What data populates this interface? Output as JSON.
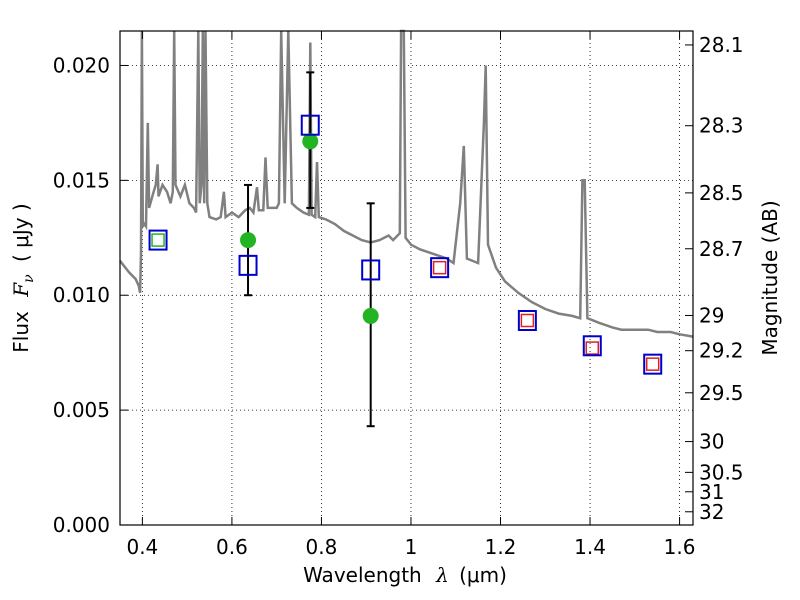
{
  "chart_data": {
    "type": "scatter",
    "xlabel": "Wavelength",
    "xlabel_symbol": "λ",
    "xlabel_unit": "(μm)",
    "ylabel": "Flux",
    "ylabel_symbol": "F",
    "ylabel_sub": "ν",
    "ylabel_unit": "( μJy )",
    "ylabel_right": "Magnitude (AB)",
    "xlim": [
      0.35,
      1.63
    ],
    "ylim": [
      0.0,
      0.0215
    ],
    "grid": true,
    "grid_style": "dotted",
    "x_ticks": [
      {
        "value": 0.4,
        "label": "0.4"
      },
      {
        "value": 0.6,
        "label": "0.6"
      },
      {
        "value": 0.8,
        "label": "0.8"
      },
      {
        "value": 1.0,
        "label": "1"
      },
      {
        "value": 1.2,
        "label": "1.2"
      },
      {
        "value": 1.4,
        "label": "1.4"
      },
      {
        "value": 1.6,
        "label": "1.6"
      }
    ],
    "y_ticks": [
      {
        "value": 0.0,
        "label": "0.000"
      },
      {
        "value": 0.005,
        "label": "0.005"
      },
      {
        "value": 0.01,
        "label": "0.010"
      },
      {
        "value": 0.015,
        "label": "0.015"
      },
      {
        "value": 0.02,
        "label": "0.020"
      }
    ],
    "mag_ticks": [
      {
        "mag": 28.1,
        "label": "28.1"
      },
      {
        "mag": 28.3,
        "label": "28.3"
      },
      {
        "mag": 28.5,
        "label": "28.5"
      },
      {
        "mag": 28.7,
        "label": "28.7"
      },
      {
        "mag": 29.0,
        "label": "29"
      },
      {
        "mag": 29.2,
        "label": "29.2"
      },
      {
        "mag": 29.5,
        "label": "29.5"
      },
      {
        "mag": 30.0,
        "label": "30"
      },
      {
        "mag": 30.5,
        "label": "30.5"
      },
      {
        "mag": 31.0,
        "label": "31"
      },
      {
        "mag": 32.0,
        "label": "32"
      }
    ],
    "colors": {
      "model": "#808080",
      "observed": "#22b422",
      "model_photometry": "#0000cc",
      "secondary": "#dd2222",
      "errorbar": "#000000"
    },
    "observed_points": [
      {
        "x": 0.435,
        "y": 0.0124,
        "err_low": 0.0124,
        "err_high": 0.0124,
        "style": "square-green"
      },
      {
        "x": 0.636,
        "y": 0.0124,
        "err_low": 0.01,
        "err_high": 0.0148,
        "style": "circle-green"
      },
      {
        "x": 0.775,
        "y": 0.0167,
        "err_low": 0.0138,
        "err_high": 0.0197,
        "style": "circle-green"
      },
      {
        "x": 0.91,
        "y": 0.0091,
        "err_low": 0.0043,
        "err_high": 0.014,
        "style": "circle-green"
      },
      {
        "x": 1.064,
        "y": 0.0112,
        "style": "square-red"
      },
      {
        "x": 1.26,
        "y": 0.0089,
        "style": "square-red"
      },
      {
        "x": 1.405,
        "y": 0.0077,
        "style": "square-red"
      },
      {
        "x": 1.54,
        "y": 0.007,
        "style": "square-red"
      }
    ],
    "model_photometry": [
      {
        "x": 0.435,
        "y": 0.0124
      },
      {
        "x": 0.636,
        "y": 0.0113
      },
      {
        "x": 0.775,
        "y": 0.0174
      },
      {
        "x": 0.91,
        "y": 0.0111
      },
      {
        "x": 1.064,
        "y": 0.0112
      },
      {
        "x": 1.26,
        "y": 0.0089
      },
      {
        "x": 1.405,
        "y": 0.0078
      },
      {
        "x": 1.54,
        "y": 0.007
      }
    ],
    "model_spectrum": [
      [
        0.35,
        0.0115
      ],
      [
        0.37,
        0.011
      ],
      [
        0.385,
        0.0107
      ],
      [
        0.392,
        0.0104
      ],
      [
        0.395,
        0.0101
      ],
      [
        0.397,
        0.0118
      ],
      [
        0.399,
        0.0215
      ],
      [
        0.401,
        0.013
      ],
      [
        0.405,
        0.0131
      ],
      [
        0.408,
        0.013
      ],
      [
        0.412,
        0.0175
      ],
      [
        0.415,
        0.0138
      ],
      [
        0.425,
        0.0145
      ],
      [
        0.43,
        0.0148
      ],
      [
        0.434,
        0.0157
      ],
      [
        0.436,
        0.0143
      ],
      [
        0.445,
        0.0148
      ],
      [
        0.455,
        0.0145
      ],
      [
        0.463,
        0.014
      ],
      [
        0.468,
        0.0145
      ],
      [
        0.471,
        0.0215
      ],
      [
        0.474,
        0.0148
      ],
      [
        0.485,
        0.0143
      ],
      [
        0.495,
        0.0148
      ],
      [
        0.505,
        0.014
      ],
      [
        0.515,
        0.0138
      ],
      [
        0.52,
        0.0136
      ],
      [
        0.525,
        0.0215
      ],
      [
        0.528,
        0.014
      ],
      [
        0.532,
        0.0148
      ],
      [
        0.535,
        0.0215
      ],
      [
        0.538,
        0.014
      ],
      [
        0.541,
        0.0215
      ],
      [
        0.545,
        0.014
      ],
      [
        0.55,
        0.0134
      ],
      [
        0.565,
        0.0133
      ],
      [
        0.575,
        0.0134
      ],
      [
        0.582,
        0.0145
      ],
      [
        0.586,
        0.0134
      ],
      [
        0.6,
        0.0136
      ],
      [
        0.615,
        0.0134
      ],
      [
        0.63,
        0.0137
      ],
      [
        0.64,
        0.0138
      ],
      [
        0.648,
        0.0136
      ],
      [
        0.656,
        0.0147
      ],
      [
        0.66,
        0.0137
      ],
      [
        0.67,
        0.0137
      ],
      [
        0.675,
        0.016
      ],
      [
        0.68,
        0.0138
      ],
      [
        0.69,
        0.0138
      ],
      [
        0.7,
        0.0138
      ],
      [
        0.705,
        0.014
      ],
      [
        0.71,
        0.0215
      ],
      [
        0.718,
        0.014
      ],
      [
        0.726,
        0.0215
      ],
      [
        0.734,
        0.014
      ],
      [
        0.745,
        0.0138
      ],
      [
        0.76,
        0.0136
      ],
      [
        0.772,
        0.0135
      ],
      [
        0.775,
        0.021
      ],
      [
        0.778,
        0.0135
      ],
      [
        0.786,
        0.0134
      ],
      [
        0.79,
        0.0158
      ],
      [
        0.794,
        0.0134
      ],
      [
        0.81,
        0.0133
      ],
      [
        0.83,
        0.0131
      ],
      [
        0.85,
        0.0128
      ],
      [
        0.87,
        0.0126
      ],
      [
        0.89,
        0.0124
      ],
      [
        0.91,
        0.0123
      ],
      [
        0.93,
        0.0124
      ],
      [
        0.95,
        0.0126
      ],
      [
        0.96,
        0.0124
      ],
      [
        0.975,
        0.0127
      ],
      [
        0.978,
        0.0215
      ],
      [
        0.984,
        0.0215
      ],
      [
        0.988,
        0.0125
      ],
      [
        1.0,
        0.0122
      ],
      [
        1.02,
        0.012
      ],
      [
        1.05,
        0.0118
      ],
      [
        1.08,
        0.0116
      ],
      [
        1.095,
        0.0114
      ],
      [
        1.11,
        0.014
      ],
      [
        1.118,
        0.0165
      ],
      [
        1.125,
        0.0116
      ],
      [
        1.15,
        0.0114
      ],
      [
        1.163,
        0.0175
      ],
      [
        1.167,
        0.02
      ],
      [
        1.172,
        0.0122
      ],
      [
        1.19,
        0.0112
      ],
      [
        1.21,
        0.0106
      ],
      [
        1.24,
        0.0101
      ],
      [
        1.27,
        0.0097
      ],
      [
        1.3,
        0.0094
      ],
      [
        1.33,
        0.0092
      ],
      [
        1.36,
        0.0091
      ],
      [
        1.378,
        0.009
      ],
      [
        1.383,
        0.015
      ],
      [
        1.388,
        0.015
      ],
      [
        1.394,
        0.009
      ],
      [
        1.42,
        0.0088
      ],
      [
        1.45,
        0.0086
      ],
      [
        1.47,
        0.0085
      ],
      [
        1.5,
        0.0085
      ],
      [
        1.53,
        0.0085
      ],
      [
        1.55,
        0.0084
      ],
      [
        1.58,
        0.0084
      ],
      [
        1.6,
        0.0083
      ],
      [
        1.63,
        0.0082
      ]
    ]
  }
}
